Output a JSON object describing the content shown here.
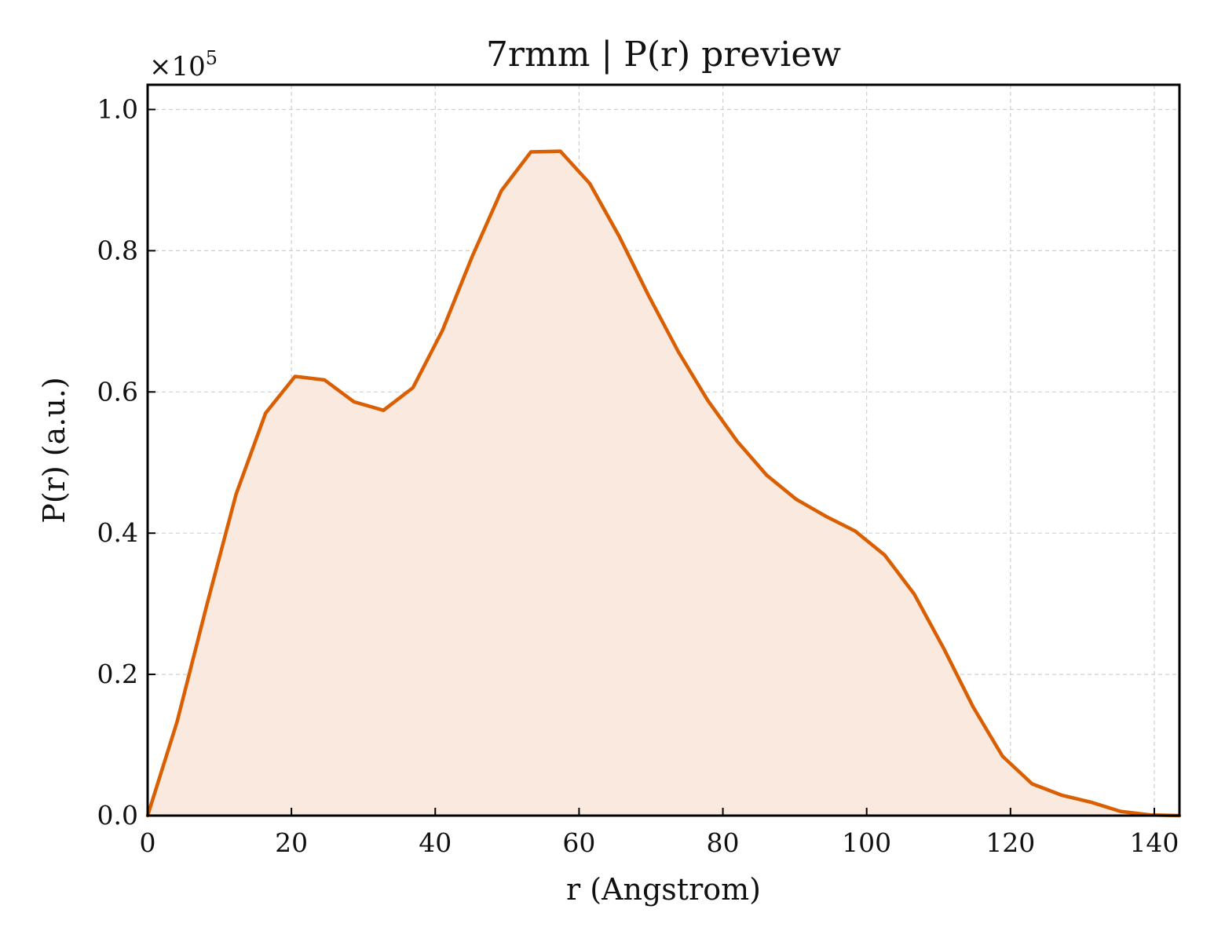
{
  "chart_data": {
    "type": "area",
    "title": "7rmm | P(r) preview",
    "xlabel": "r (Angstrom)",
    "ylabel": "P(r) (a.u.)",
    "y_multiplier_label": "×10",
    "y_multiplier_exponent": "5",
    "xlim": [
      0,
      143.5
    ],
    "ylim": [
      0,
      1.035
    ],
    "x_ticks": [
      0,
      20,
      40,
      60,
      80,
      100,
      120,
      140
    ],
    "x_tick_labels": [
      "0",
      "20",
      "40",
      "60",
      "80",
      "100",
      "120",
      "140"
    ],
    "y_ticks": [
      0.0,
      0.2,
      0.4,
      0.6,
      0.8,
      1.0
    ],
    "y_tick_labels": [
      "0.0",
      "0.2",
      "0.4",
      "0.6",
      "0.8",
      "1.0"
    ],
    "grid": true,
    "line_color": "#d95f02",
    "fill_color": "#f9e9df",
    "series": [
      {
        "x": [
          0,
          4.1,
          8.2,
          12.3,
          16.4,
          20.5,
          24.6,
          28.7,
          32.8,
          36.9,
          41.0,
          45.1,
          49.2,
          53.3,
          57.4,
          61.5,
          65.6,
          69.7,
          73.8,
          77.9,
          82.0,
          86.1,
          90.2,
          94.3,
          98.4,
          102.5,
          106.6,
          110.7,
          114.8,
          118.9,
          123.0,
          127.1,
          131.2,
          135.3,
          139.4,
          143.5
        ],
        "values": [
          0.0,
          0.133,
          0.297,
          0.455,
          0.57,
          0.622,
          0.617,
          0.586,
          0.574,
          0.606,
          0.687,
          0.791,
          0.885,
          0.94,
          0.941,
          0.895,
          0.82,
          0.736,
          0.657,
          0.588,
          0.53,
          0.482,
          0.448,
          0.424,
          0.403,
          0.369,
          0.314,
          0.237,
          0.154,
          0.084,
          0.045,
          0.029,
          0.019,
          0.006,
          0.001,
          0.0
        ]
      }
    ]
  }
}
